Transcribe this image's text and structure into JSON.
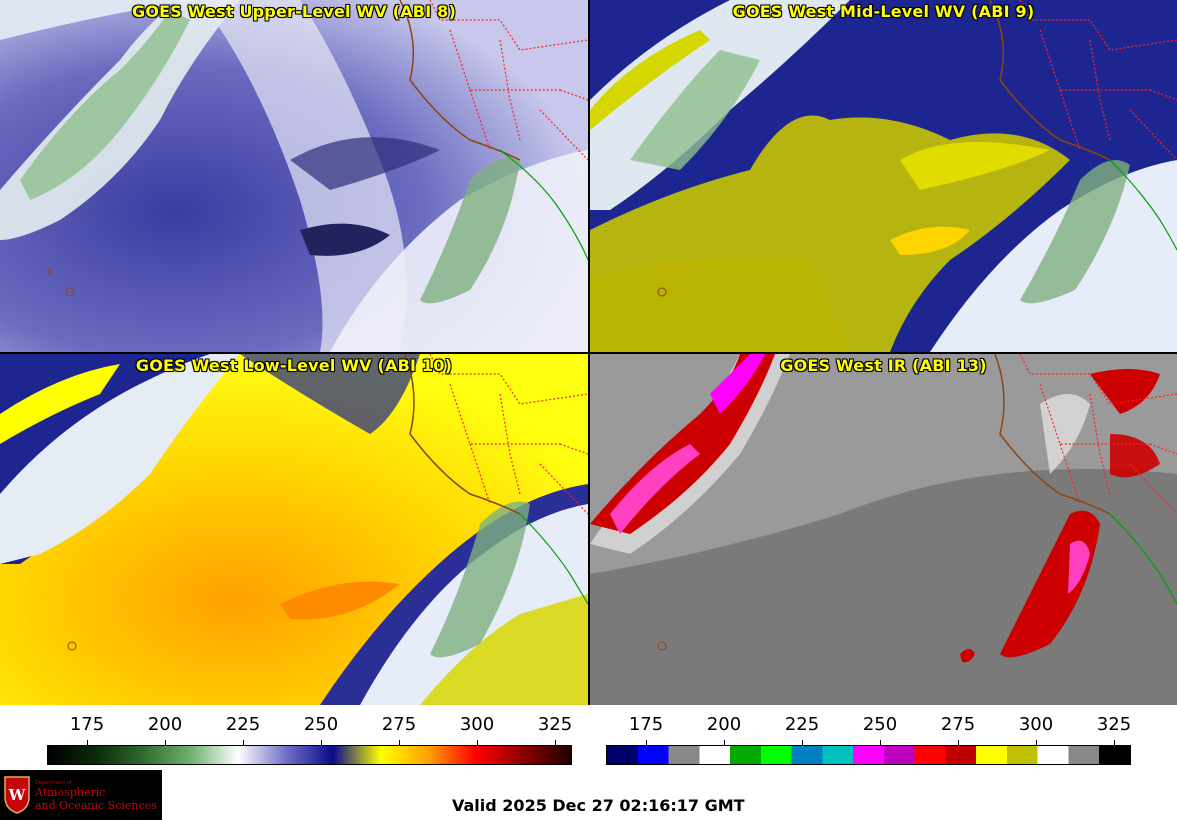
{
  "panels": [
    {
      "title": "GOES West Upper-Level WV (ABI 8)"
    },
    {
      "title": "GOES West Mid-Level WV (ABI 9)"
    },
    {
      "title": "GOES West Low-Level WV (ABI 10)"
    },
    {
      "title": "GOES West IR (ABI 13)"
    }
  ],
  "wv_colorbar": {
    "ticks": [
      "175",
      "200",
      "225",
      "250",
      "275",
      "300",
      "325"
    ],
    "gradient_colors": [
      "#000000",
      "#0b2a0b",
      "#2e6b2e",
      "#6fb06f",
      "#ffffff",
      "#7070c8",
      "#0a0a8c",
      "#ffff00",
      "#ffa000",
      "#ff0000",
      "#8b0000",
      "#200000"
    ]
  },
  "ir_colorbar": {
    "ticks": [
      "175",
      "200",
      "225",
      "250",
      "275",
      "300",
      "325"
    ],
    "segment_colors": [
      "#00006a",
      "#0000ff",
      "#888888",
      "#ffffff",
      "#00aa00",
      "#00ff00",
      "#0080c0",
      "#00c0c0",
      "#ff00ff",
      "#c000c0",
      "#ff0000",
      "#c00000",
      "#ffff00",
      "#c0c000",
      "#ffffff",
      "#888888",
      "#000000"
    ]
  },
  "logo": {
    "dept_small": "Department of",
    "line1": "Atmospheric",
    "line2": "and Oceanic Sciences"
  },
  "valid_time": "Valid 2025 Dec 27 02:16:17 GMT",
  "colors": {
    "title_text": "#ffff00",
    "state_borders": "#ff2020",
    "coastline": "#8b4513",
    "mexico_coast": "#00a000"
  }
}
